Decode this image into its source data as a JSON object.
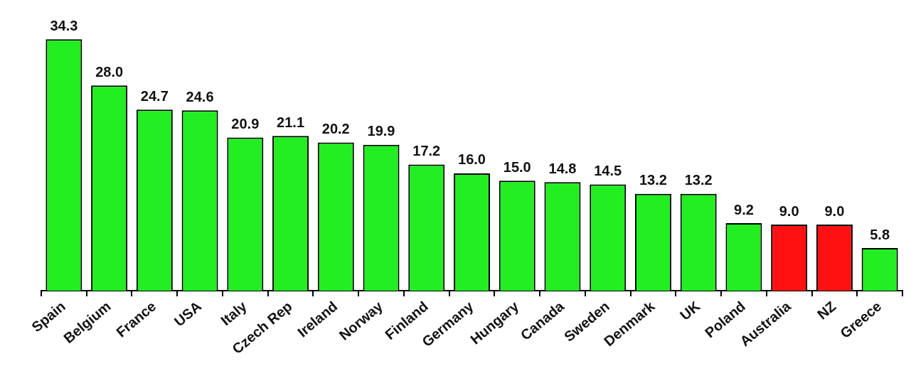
{
  "chart_data": {
    "type": "bar",
    "categories": [
      "Spain",
      "Belgium",
      "France",
      "USA",
      "Italy",
      "Czech Rep",
      "Ireland",
      "Norway",
      "Finland",
      "Germany",
      "Hungary",
      "Canada",
      "Sweden",
      "Denmark",
      "UK",
      "Poland",
      "Australia",
      "NZ",
      "Greece"
    ],
    "values": [
      34.3,
      28.0,
      24.7,
      24.6,
      20.9,
      21.1,
      20.2,
      19.9,
      17.2,
      16.0,
      15.0,
      14.8,
      14.5,
      13.2,
      13.2,
      9.2,
      9.0,
      9.0,
      5.8
    ],
    "value_labels": [
      "34.3",
      "28.0",
      "24.7",
      "24.6",
      "20.9",
      "21.1",
      "20.2",
      "19.9",
      "17.2",
      "16.0",
      "15.0",
      "14.8",
      "14.5",
      "13.2",
      "13.2",
      "9.2",
      "9.0",
      "9.0",
      "5.8"
    ],
    "colors": [
      "#22ee22",
      "#22ee22",
      "#22ee22",
      "#22ee22",
      "#22ee22",
      "#22ee22",
      "#22ee22",
      "#22ee22",
      "#22ee22",
      "#22ee22",
      "#22ee22",
      "#22ee22",
      "#22ee22",
      "#22ee22",
      "#22ee22",
      "#22ee22",
      "#ff1111",
      "#ff1111",
      "#22ee22"
    ],
    "legend": false,
    "grid": false
  }
}
